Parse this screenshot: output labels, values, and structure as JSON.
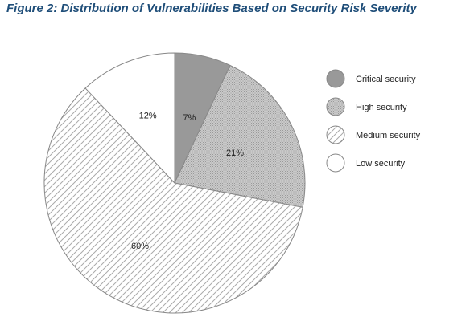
{
  "figure_title": "Figure 2: Distribution of Vulnerabilities Based on Security Risk Severity",
  "chart_data": {
    "type": "pie",
    "title": "Figure 2: Distribution of Vulnerabilities Based on Security Risk Severity",
    "categories": [
      "Critical security",
      "High security",
      "Medium security",
      "Low security"
    ],
    "values": [
      7,
      21,
      60,
      12
    ],
    "labels": [
      "7%",
      "21%",
      "60%",
      "12%"
    ],
    "start_angle_deg": 0,
    "direction": "clockwise",
    "legend_position": "right",
    "fills": [
      {
        "type": "solid",
        "color": "#999999"
      },
      {
        "type": "dotted",
        "color": "#cccccc"
      },
      {
        "type": "hatch",
        "color": "#ffffff"
      },
      {
        "type": "solid",
        "color": "#ffffff"
      }
    ],
    "stroke_color": "#888888"
  }
}
